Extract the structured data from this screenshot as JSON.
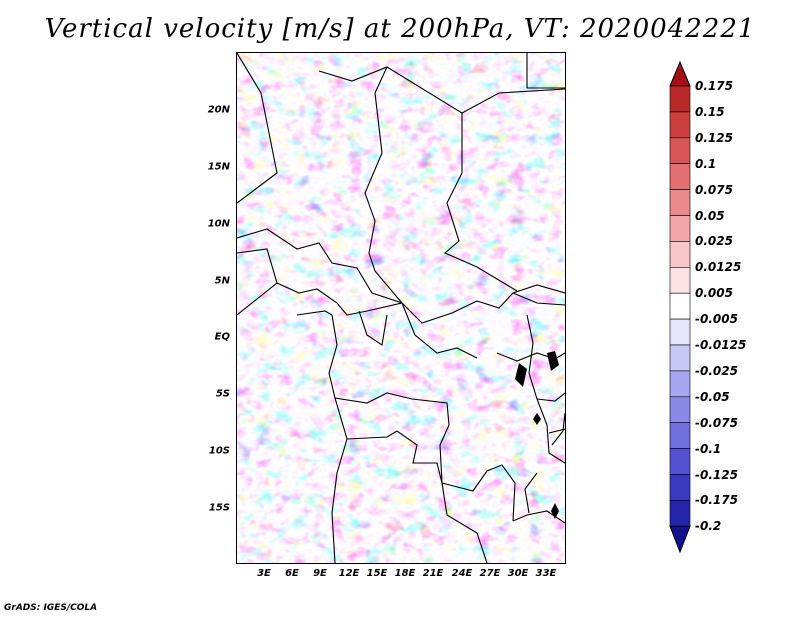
{
  "title": "Vertical velocity [m/s] at 200hPa, VT: 2020042221",
  "footer": "GrADS: IGES/COLA",
  "latitude_labels": [
    "20N",
    "15N",
    "10N",
    "5N",
    "EQ",
    "5S",
    "10S",
    "15S"
  ],
  "longitude_labels": [
    "3E",
    "6E",
    "9E",
    "12E",
    "15E",
    "18E",
    "21E",
    "24E",
    "27E",
    "30E",
    "33E"
  ],
  "legend": {
    "labels": [
      "0.175",
      "0.15",
      "0.125",
      "0.1",
      "0.075",
      "0.05",
      "0.025",
      "0.0125",
      "0.005",
      "-0.005",
      "-0.0125",
      "-0.025",
      "-0.05",
      "-0.075",
      "-0.1",
      "-0.125",
      "-0.175",
      "-0.2"
    ],
    "colors": [
      "#a50f15",
      "#bb2a2a",
      "#cb3f3f",
      "#d85656",
      "#e27070",
      "#eb8a8a",
      "#f2a8a8",
      "#f8c6c6",
      "#fce4e4",
      "#ffffff",
      "#e4e4fc",
      "#c8c8f6",
      "#a6a6ee",
      "#8a8ae6",
      "#6e6edd",
      "#5252d0",
      "#3a3ac0",
      "#2424aa",
      "#12128c"
    ]
  },
  "colors": {
    "positive": "#d23c3c",
    "negative": "#3c3cc8",
    "borders": "#000000"
  }
}
